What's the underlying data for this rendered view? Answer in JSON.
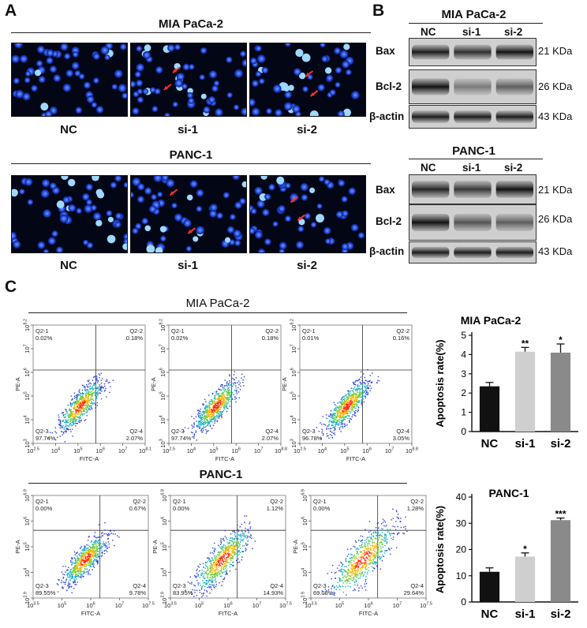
{
  "panel_a": {
    "letter": "A",
    "groups": [
      {
        "title": "MIA PaCa-2",
        "labels": [
          "NC",
          "si-1",
          "si-2"
        ]
      },
      {
        "title": "PANC-1",
        "labels": [
          "NC",
          "si-1",
          "si-2"
        ]
      }
    ]
  },
  "panel_b": {
    "letter": "B",
    "groups": [
      {
        "title": "MIA PaCa-2",
        "lanes": [
          "NC",
          "si-1",
          "si-2"
        ],
        "bands": [
          {
            "name": "Bax",
            "size": "21 KDa"
          },
          {
            "name": "Bcl-2",
            "size": "26 KDa"
          },
          {
            "name": "β-actin",
            "size": "43 KDa"
          }
        ]
      },
      {
        "title": "PANC-1",
        "lanes": [
          "NC",
          "si-1",
          "si-2"
        ],
        "bands": [
          {
            "name": "Bax",
            "size": "21 KDa"
          },
          {
            "name": "Bcl-2",
            "size": "26 KDa"
          },
          {
            "name": "β-actin",
            "size": "43 KDa"
          }
        ]
      }
    ]
  },
  "panel_c": {
    "letter": "C",
    "rows": [
      {
        "title": "MIA PaCa-2",
        "plots": [
          {
            "q1": [
              "Q2-1",
              "0.02%"
            ],
            "q2": [
              "Q2-2",
              "0.18%"
            ],
            "q3": [
              "Q2-3",
              "97.74%"
            ],
            "q4": [
              "Q2-4",
              "2.07%"
            ],
            "xlabel": "FITC-A",
            "ylabel": "PE-A",
            "xticks": [
              "10^2.5",
              "10^4",
              "10^5",
              "10^6",
              "10^7",
              "10^8.1"
            ],
            "yticks": [
              "10^8.2",
              "10^7",
              "10^6",
              "10^5",
              "10^4",
              "10^3"
            ]
          },
          {
            "q1": [
              "Q2-1",
              "0.02%"
            ],
            "q2": [
              "Q2-2",
              "0.18%"
            ],
            "q3": [
              "Q2-3",
              "97.74%"
            ],
            "q4": [
              "Q2-4",
              "2.07%"
            ],
            "xlabel": "FITC-A",
            "ylabel": "PE-A",
            "xticks": [
              "10^2.5",
              "10^4",
              "10^5",
              "10^6",
              "10^7",
              "10^8.8"
            ],
            "yticks": [
              "10^8.2",
              "10^7",
              "10^6",
              "10^5",
              "10^4",
              "10^3"
            ]
          },
          {
            "q1": [
              "Q2-1",
              "0.01%"
            ],
            "q2": [
              "Q2-2",
              "0.16%"
            ],
            "q3": [
              "Q2-3",
              "96.78%"
            ],
            "q4": [
              "Q2-4",
              "3.05%"
            ],
            "xlabel": "FITC-A",
            "ylabel": "PE-A",
            "xticks": [
              "10^2.5",
              "10^4",
              "10^5",
              "10^6",
              "10^7",
              "10^8.8"
            ],
            "yticks": [
              "10^8.2",
              "10^7",
              "10^6",
              "10^5",
              "10^4",
              "10^3"
            ]
          }
        ]
      },
      {
        "title": "PANC-1",
        "plots": [
          {
            "q1": [
              "Q2-1",
              "0.00%"
            ],
            "q2": [
              "Q2-2",
              "0.67%"
            ],
            "q3": [
              "Q2-3",
              "89.55%"
            ],
            "q4": [
              "Q2-4",
              "9.78%"
            ],
            "xlabel": "FITC-A",
            "ylabel": "PE-A",
            "xticks": [
              "10^3.5",
              "10^5",
              "10^6",
              "10^7",
              "10^7.5"
            ],
            "yticks": [
              "10^6.9",
              "10^6",
              "10^5",
              "10^4",
              "10^2.9"
            ]
          },
          {
            "q1": [
              "Q2-1",
              "0.00%"
            ],
            "q2": [
              "Q2-2",
              "1.12%"
            ],
            "q3": [
              "Q2-3",
              "83.95%"
            ],
            "q4": [
              "Q2-4",
              "14.93%"
            ],
            "xlabel": "FITC-A",
            "ylabel": "PE-A",
            "xticks": [
              "10^3.5",
              "10^5",
              "10^6",
              "10^7",
              "10^7.5"
            ],
            "yticks": [
              "10^6.9",
              "10^6",
              "10^5",
              "10^4",
              "10^2.9"
            ]
          },
          {
            "q1": [
              "Q2-1",
              "0.00%"
            ],
            "q2": [
              "Q2-2",
              "1.28%"
            ],
            "q3": [
              "Q2-3",
              "69.08%"
            ],
            "q4": [
              "Q2-4",
              "29.64%"
            ],
            "xlabel": "FITC-A",
            "ylabel": "PE-A",
            "xticks": [
              "10^3.5",
              "10^5",
              "10^6",
              "10^7",
              "10^7.5"
            ],
            "yticks": [
              "10^6.9",
              "10^6",
              "10^5",
              "10^4",
              "10^2.9"
            ]
          }
        ]
      }
    ]
  },
  "chart_data": [
    {
      "type": "bar",
      "title": "MIA PaCa-2",
      "ylabel": "Apoptosis rate(%)",
      "categories": [
        "NC",
        "si-1",
        "si-2"
      ],
      "values": [
        2.35,
        4.15,
        4.1
      ],
      "errors": [
        0.2,
        0.22,
        0.45
      ],
      "significance": [
        "",
        "**",
        "*"
      ],
      "ylim": [
        0,
        5
      ],
      "yticks": [
        "0",
        "1",
        "2",
        "3",
        "4",
        "5"
      ],
      "colors": [
        "#111111",
        "#cfcfcf",
        "#8a8a8a"
      ]
    },
    {
      "type": "bar",
      "title": "PANC-1",
      "ylabel": "Apoptosis rate(%)",
      "categories": [
        "NC",
        "si-1",
        "si-2"
      ],
      "values": [
        11.5,
        17.3,
        31.2
      ],
      "errors": [
        1.5,
        1.4,
        0.8
      ],
      "significance": [
        "",
        "*",
        "***"
      ],
      "ylim": [
        0,
        40
      ],
      "yticks": [
        "0",
        "10",
        "20",
        "30",
        "40"
      ],
      "colors": [
        "#111111",
        "#cfcfcf",
        "#8a8a8a"
      ]
    }
  ]
}
